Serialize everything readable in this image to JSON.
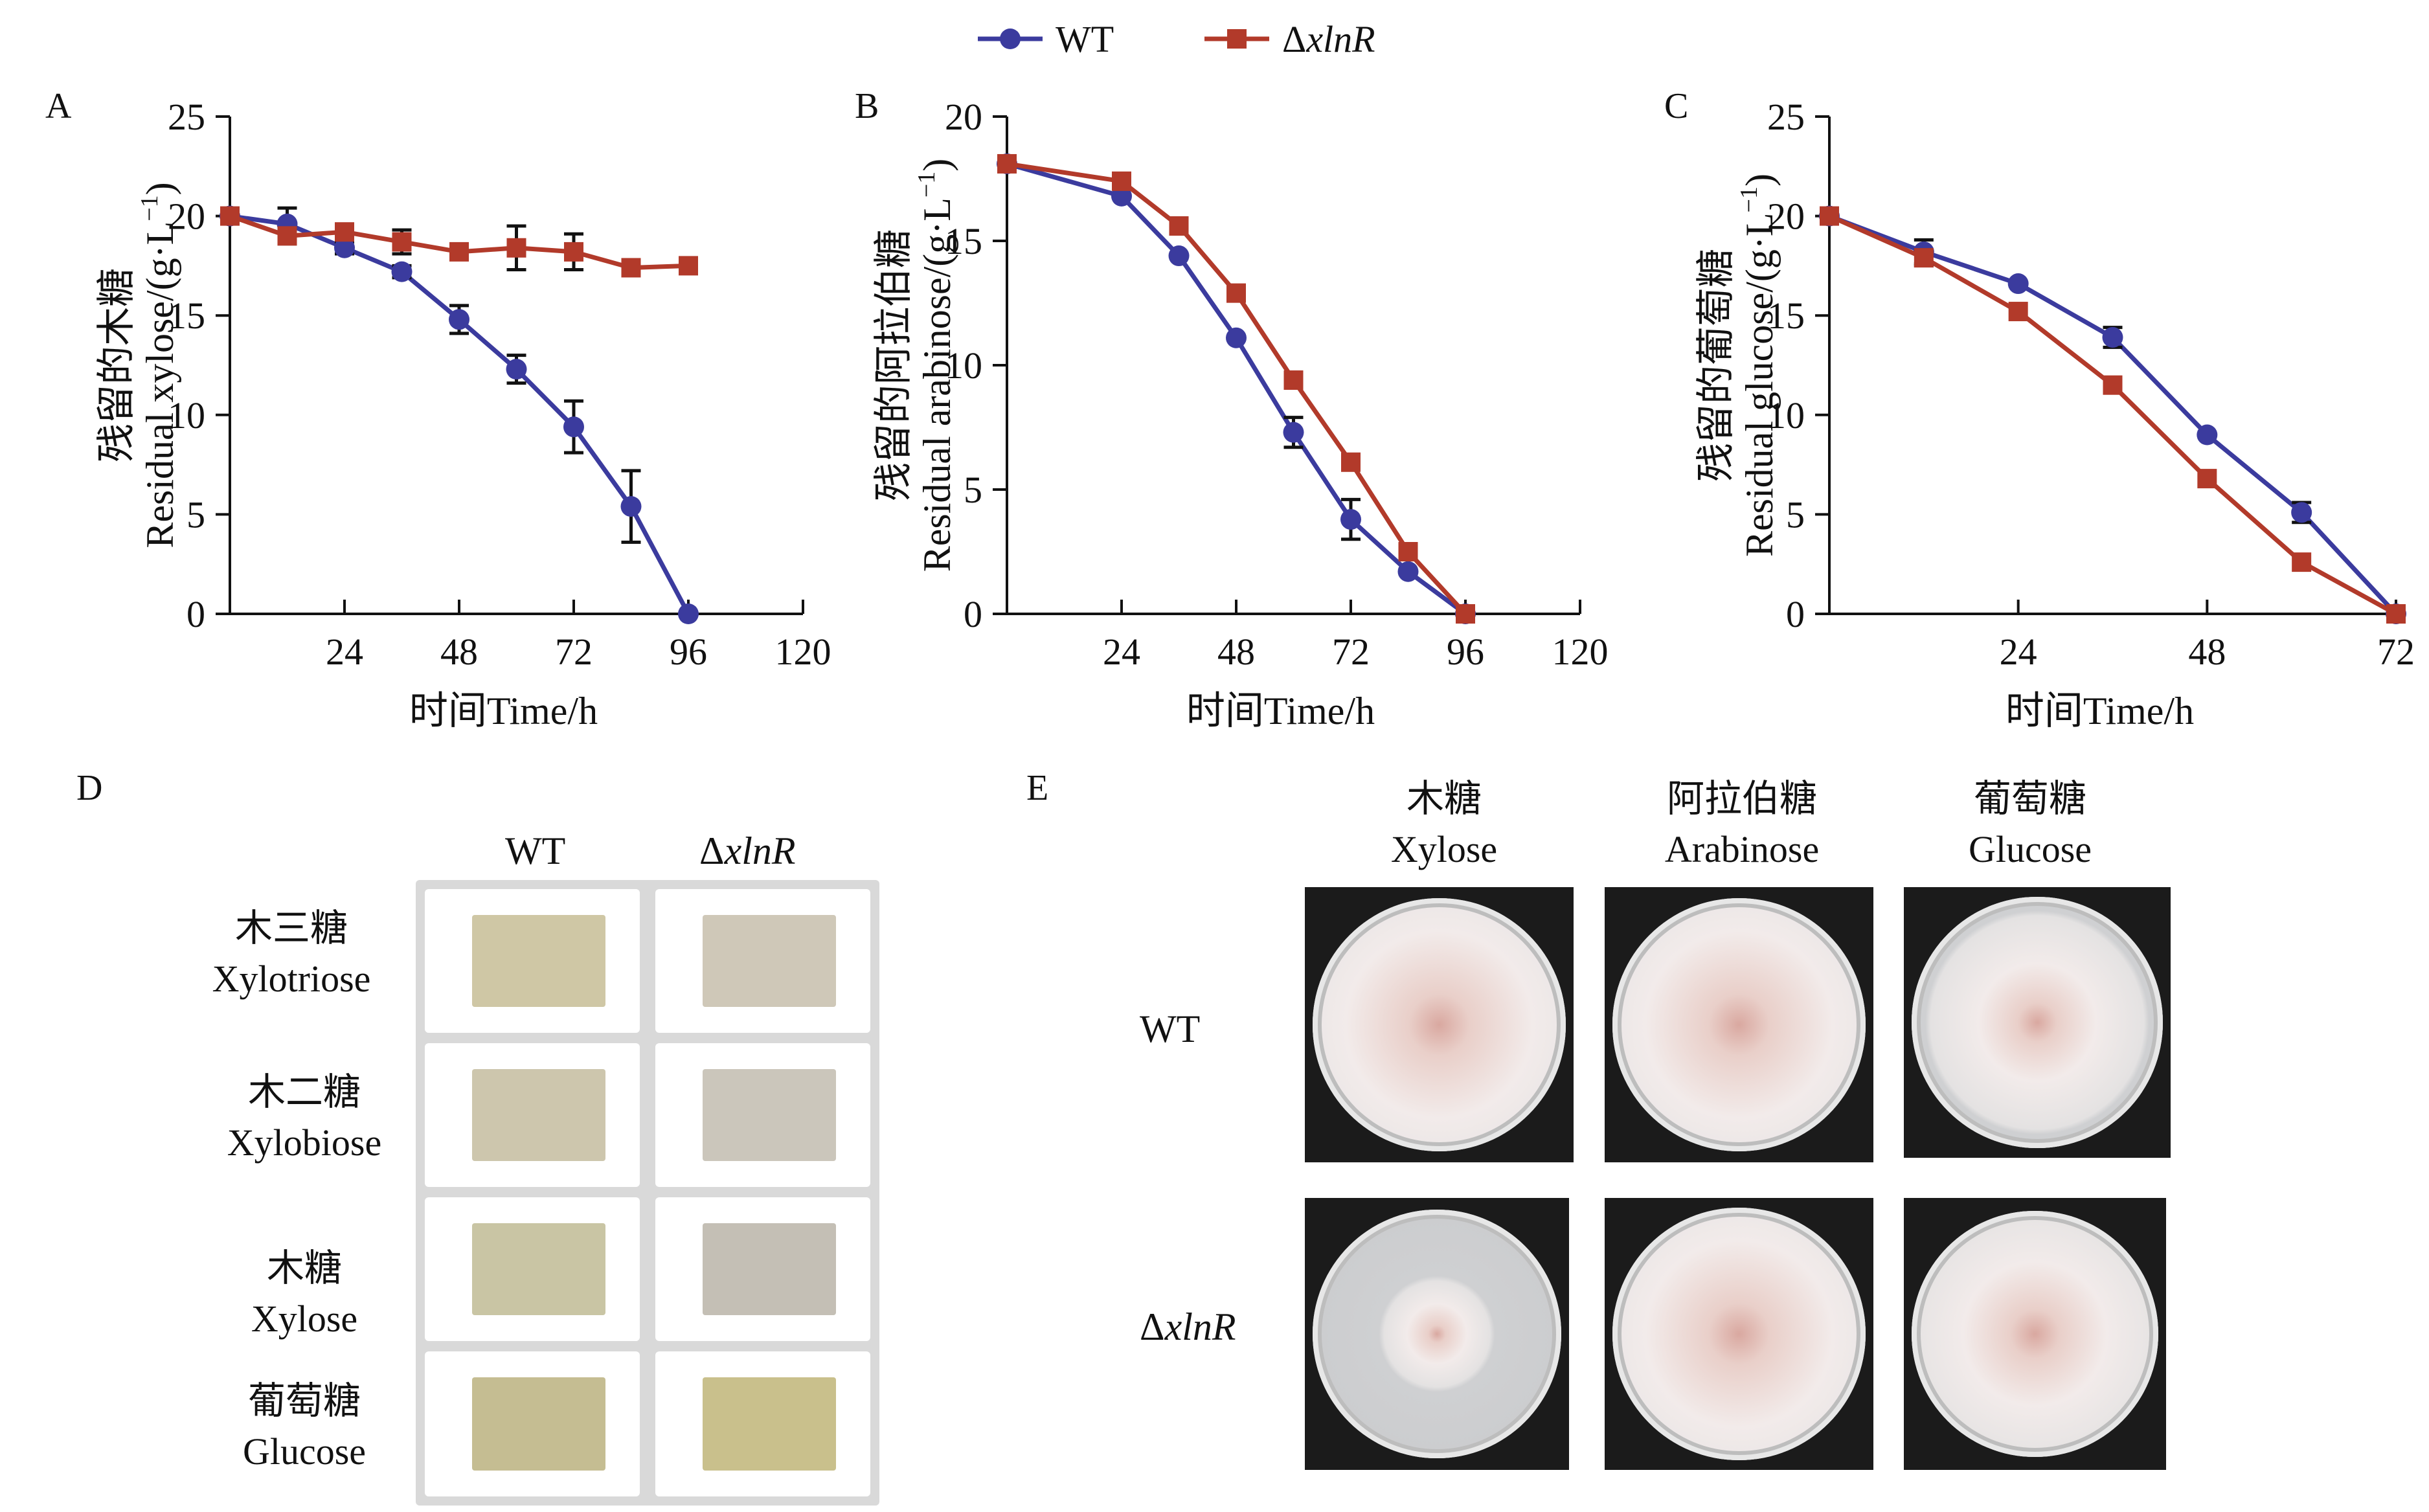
{
  "legend": {
    "series": [
      {
        "name": "WT",
        "color": "#3b3b9e",
        "marker": "circle"
      },
      {
        "name_prefix": "Δ",
        "name_italic": "xlnR",
        "color": "#b23a2a",
        "marker": "square"
      }
    ]
  },
  "chart_data": [
    {
      "panel": "A",
      "type": "line",
      "ylabel_cn": "残留的木糖",
      "ylabel_en": "Residual xylose/(g·L",
      "ylabel_sup": "−1",
      "ylabel_close": ")",
      "xlabel": "时间Time/h",
      "xlim": [
        0,
        120
      ],
      "ylim": [
        0,
        25
      ],
      "xticks": [
        24,
        48,
        72,
        96,
        120
      ],
      "yticks": [
        0,
        5,
        10,
        15,
        20,
        25
      ],
      "series": [
        {
          "name": "WT",
          "x": [
            0,
            12,
            24,
            36,
            48,
            60,
            72,
            84,
            96
          ],
          "values": [
            20,
            19.6,
            18.4,
            17.2,
            14.8,
            12.3,
            9.4,
            5.4,
            0
          ],
          "err": [
            0.3,
            0.8,
            0.3,
            0.3,
            0.7,
            0.7,
            1.3,
            1.8,
            0
          ]
        },
        {
          "name": "ΔxlnR",
          "x": [
            0,
            12,
            24,
            36,
            48,
            60,
            72,
            84,
            96
          ],
          "values": [
            20,
            19.0,
            19.2,
            18.7,
            18.2,
            18.4,
            18.2,
            17.4,
            17.5
          ],
          "err": [
            0.3,
            0.4,
            0.3,
            0.6,
            0.3,
            1.1,
            0.9,
            0.3,
            0.3
          ]
        }
      ]
    },
    {
      "panel": "B",
      "type": "line",
      "ylabel_cn": "残留的阿拉伯糖",
      "ylabel_en": "Residual arabinose/(g·L",
      "ylabel_sup": "−1",
      "ylabel_close": ")",
      "xlabel": "时间Time/h",
      "xlim": [
        0,
        120
      ],
      "ylim": [
        0,
        20
      ],
      "xticks": [
        24,
        48,
        72,
        96,
        120
      ],
      "yticks": [
        0,
        5,
        10,
        15,
        20
      ],
      "series": [
        {
          "name": "WT",
          "x": [
            0,
            24,
            36,
            48,
            60,
            72,
            84,
            96
          ],
          "values": [
            18.1,
            16.8,
            14.4,
            11.1,
            7.3,
            3.8,
            1.7,
            0
          ],
          "err": [
            0.2,
            0.2,
            0.2,
            0.2,
            0.6,
            0.8,
            0.2,
            0
          ]
        },
        {
          "name": "ΔxlnR",
          "x": [
            0,
            24,
            36,
            48,
            60,
            72,
            84,
            96
          ],
          "values": [
            18.1,
            17.4,
            15.6,
            12.9,
            9.4,
            6.1,
            2.5,
            0
          ],
          "err": [
            0.2,
            0.2,
            0.2,
            0.2,
            0.2,
            0.2,
            0.2,
            0
          ]
        }
      ]
    },
    {
      "panel": "C",
      "type": "line",
      "ylabel_cn": "残留的葡萄糖",
      "ylabel_en": "Residual glucose/(g·L",
      "ylabel_sup": "−1",
      "ylabel_close": ")",
      "xlabel": "时间Time/h",
      "xlim": [
        0,
        72
      ],
      "ylim": [
        0,
        25
      ],
      "xticks": [
        24,
        48,
        72
      ],
      "yticks": [
        0,
        5,
        10,
        15,
        20,
        25
      ],
      "series": [
        {
          "name": "WT",
          "x": [
            0,
            12,
            24,
            36,
            48,
            60,
            72
          ],
          "values": [
            20,
            18.2,
            16.6,
            13.9,
            9.0,
            5.1,
            0
          ],
          "err": [
            0.2,
            0.6,
            0.2,
            0.5,
            0.2,
            0.5,
            0
          ]
        },
        {
          "name": "ΔxlnR",
          "x": [
            0,
            12,
            24,
            36,
            48,
            60,
            72
          ],
          "values": [
            20,
            17.9,
            15.2,
            11.5,
            6.8,
            2.6,
            0
          ],
          "err": [
            0.2,
            0.4,
            0.2,
            0.2,
            0.2,
            0.2,
            0
          ]
        }
      ]
    }
  ],
  "panel_d": {
    "letter": "D",
    "col_wt": "WT",
    "col_mut_prefix": "Δ",
    "col_mut_italic": "xlnR",
    "rows": [
      {
        "cn": "木三糖",
        "en": "Xylotriose",
        "wt_color": "#cfc7a5",
        "mut_color": "#cfc8b8"
      },
      {
        "cn": "木二糖",
        "en": "Xylobiose",
        "wt_color": "#cdc6ad",
        "mut_color": "#cbc6bb"
      },
      {
        "cn": "木糖",
        "en": "Xylose",
        "wt_color": "#c9c5a4",
        "mut_color": "#c4bfb5"
      },
      {
        "cn": "葡萄糖",
        "en": "Glucose",
        "wt_color": "#c5bd92",
        "mut_color": "#c9c08c"
      }
    ]
  },
  "panel_e": {
    "letter": "E",
    "columns": [
      {
        "cn": "木糖",
        "en": "Xylose"
      },
      {
        "cn": "阿拉伯糖",
        "en": "Arabinose"
      },
      {
        "cn": "葡萄糖",
        "en": "Glucose"
      }
    ],
    "row_wt": "WT",
    "row_mut_prefix": "Δ",
    "row_mut_italic": "xlnR",
    "colony_growth": [
      [
        0.95,
        0.95,
        0.6
      ],
      [
        0.3,
        0.95,
        0.75
      ]
    ]
  }
}
